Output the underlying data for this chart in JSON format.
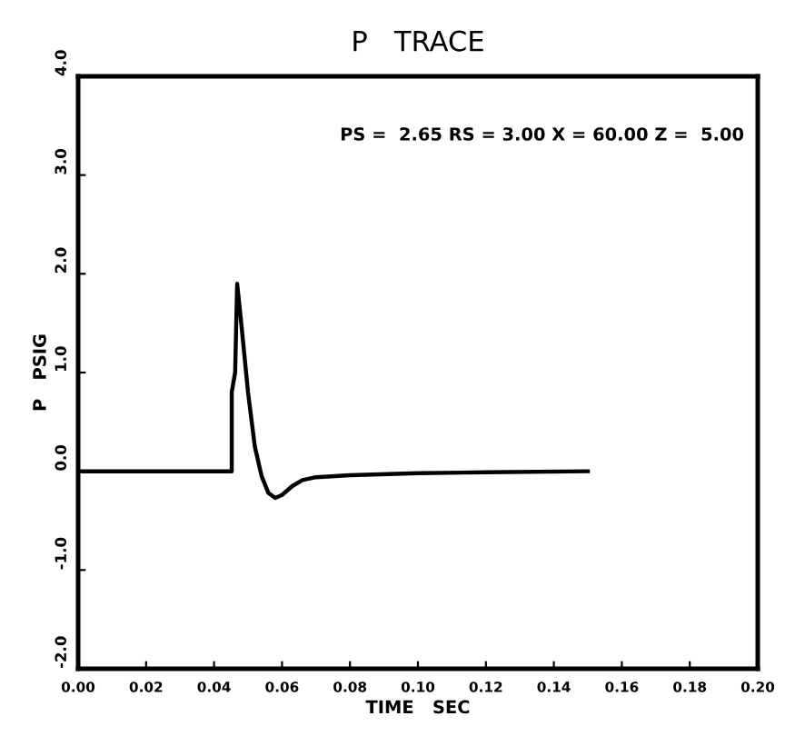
{
  "chart_data": {
    "type": "line",
    "title": "P   TRACE",
    "xlabel": "TIME   SEC",
    "ylabel": "P   PSIG",
    "annotations": [
      "PS =  2.65 RS = 3.00 X = 60.00 Z =  5.00"
    ],
    "x": [
      0,
      0.0452,
      0.0452,
      0.0462,
      0.0468,
      0.048,
      0.05,
      0.052,
      0.054,
      0.056,
      0.058,
      0.06,
      0.063,
      0.066,
      0.07,
      0.08,
      0.1,
      0.12,
      0.15
    ],
    "series": [
      {
        "color": "#000000",
        "values": [
          0,
          0,
          0.8,
          1.0,
          1.9,
          1.5,
          0.8,
          0.25,
          -0.05,
          -0.22,
          -0.27,
          -0.24,
          -0.15,
          -0.09,
          -0.06,
          -0.04,
          -0.02,
          -0.01,
          0
        ]
      }
    ],
    "xlim": [
      0,
      0.2
    ],
    "ylim": [
      -2,
      4
    ],
    "xticks": [
      {
        "value": 0,
        "label": "0.00"
      },
      {
        "value": 0.02,
        "label": "0.02"
      },
      {
        "value": 0.04,
        "label": "0.04"
      },
      {
        "value": 0.06,
        "label": "0.06"
      },
      {
        "value": 0.08,
        "label": "0.08"
      },
      {
        "value": 0.1,
        "label": "0.10"
      },
      {
        "value": 0.12,
        "label": "0.12"
      },
      {
        "value": 0.14,
        "label": "0.14"
      },
      {
        "value": 0.16,
        "label": "0.16"
      },
      {
        "value": 0.18,
        "label": "0.18"
      },
      {
        "value": 0.2,
        "label": "0.20"
      }
    ],
    "yticks": [
      {
        "value": -2,
        "label": "-2.0"
      },
      {
        "value": -1,
        "label": "-1.0"
      },
      {
        "value": 0,
        "label": "0.0"
      },
      {
        "value": 1,
        "label": "1.0"
      },
      {
        "value": 2,
        "label": "2.0"
      },
      {
        "value": 3,
        "label": "3.0"
      },
      {
        "value": 4,
        "label": "4.0"
      }
    ],
    "grid": false,
    "legend": false,
    "marker": "none",
    "line_style": "solid"
  }
}
